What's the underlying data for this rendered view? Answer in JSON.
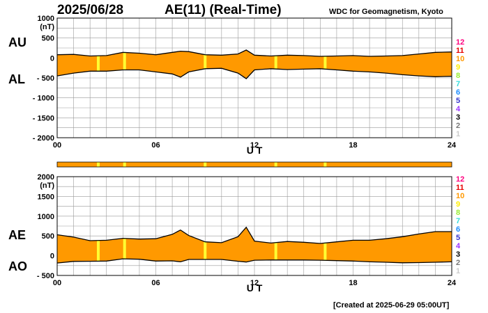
{
  "header": {
    "date": "2025/06/28",
    "title": "AE(11) (Real-Time)",
    "source": "WDC for Geomagnetism, Kyoto",
    "created": "[Created at 2025-06-29 05:00UT]"
  },
  "level_legend": {
    "levels": [
      "12",
      "11",
      "10",
      "9",
      "8",
      "7",
      "6",
      "5",
      "4",
      "3",
      "2",
      "1"
    ],
    "colors": [
      "#ff007f",
      "#e60000",
      "#ff9900",
      "#ffee00",
      "#99ee33",
      "#33dddd",
      "#1a8cff",
      "#3333cc",
      "#9933ff",
      "#000000",
      "#777777",
      "#cccccc"
    ]
  },
  "colors": {
    "fill": "#ff9900",
    "gap_marker": "#ffff33",
    "envelope": "#000000",
    "grid": "#999999"
  },
  "chart_data": [
    {
      "type": "area",
      "panel": "AU-AL",
      "series": [
        {
          "name": "AU",
          "x_hours": [
            0,
            1,
            2,
            3,
            4,
            5,
            6,
            7,
            7.5,
            8,
            9,
            10,
            11,
            11.5,
            12,
            13,
            14,
            15,
            16,
            17,
            18,
            19,
            20,
            21,
            22,
            23,
            24
          ],
          "values": [
            80,
            90,
            50,
            60,
            140,
            120,
            80,
            140,
            170,
            160,
            80,
            70,
            100,
            200,
            70,
            50,
            70,
            60,
            40,
            50,
            60,
            40,
            50,
            60,
            100,
            140,
            150
          ]
        },
        {
          "name": "AL",
          "x_hours": [
            0,
            1,
            2,
            3,
            4,
            5,
            6,
            7,
            7.5,
            8,
            9,
            10,
            11,
            11.5,
            12,
            13,
            14,
            15,
            16,
            17,
            18,
            19,
            20,
            21,
            22,
            23,
            24
          ],
          "values": [
            -450,
            -380,
            -330,
            -330,
            -300,
            -300,
            -350,
            -400,
            -480,
            -350,
            -270,
            -260,
            -380,
            -520,
            -300,
            -270,
            -290,
            -280,
            -270,
            -300,
            -330,
            -350,
            -380,
            -420,
            -450,
            -470,
            -460
          ]
        }
      ],
      "gap_markers_hours": [
        2.5,
        4.1,
        9.0,
        13.3,
        16.3
      ],
      "xlabel": "U T",
      "ylabel": "(nT)",
      "x_ticks": [
        "00",
        "06",
        "12",
        "18",
        "24"
      ],
      "xlim": [
        0,
        24
      ],
      "ylim": [
        -2000,
        1000
      ],
      "y_ticks": [
        1000,
        500,
        0,
        -500,
        -1000,
        -1500,
        -2000
      ],
      "y_tick_labels": [
        "1000",
        "500",
        "0",
        "- 500",
        "- 1000",
        "- 1500",
        "- 2000"
      ],
      "panel_labels": [
        "AU",
        "AL"
      ],
      "grid": true
    },
    {
      "type": "area",
      "panel": "AE-AO",
      "series": [
        {
          "name": "AE",
          "x_hours": [
            0,
            1,
            2,
            3,
            4,
            5,
            6,
            7,
            7.5,
            8,
            9,
            10,
            11,
            11.5,
            12,
            13,
            14,
            15,
            16,
            17,
            18,
            19,
            20,
            21,
            22,
            23,
            24
          ],
          "values": [
            530,
            470,
            380,
            390,
            440,
            420,
            430,
            540,
            650,
            510,
            350,
            330,
            480,
            720,
            370,
            320,
            360,
            340,
            310,
            350,
            390,
            390,
            430,
            480,
            550,
            610,
            610
          ]
        },
        {
          "name": "AO",
          "x_hours": [
            0,
            1,
            2,
            3,
            4,
            5,
            6,
            7,
            7.5,
            8,
            9,
            10,
            11,
            11.5,
            12,
            13,
            14,
            15,
            16,
            17,
            18,
            19,
            20,
            21,
            22,
            23,
            24
          ],
          "values": [
            -185,
            -145,
            -140,
            -135,
            -80,
            -90,
            -135,
            -130,
            -155,
            -95,
            -95,
            -95,
            -140,
            -160,
            -115,
            -110,
            -110,
            -110,
            -115,
            -125,
            -135,
            -155,
            -165,
            -180,
            -175,
            -165,
            -155
          ]
        }
      ],
      "gap_markers_hours": [
        2.5,
        4.1,
        9.0,
        13.3,
        16.3
      ],
      "xlabel": "U T",
      "ylabel": "(nT)",
      "x_ticks": [
        "00",
        "06",
        "12",
        "18",
        "24"
      ],
      "xlim": [
        0,
        24
      ],
      "ylim": [
        -500,
        2000
      ],
      "y_ticks": [
        2000,
        1500,
        1000,
        500,
        0,
        -500
      ],
      "y_tick_labels": [
        "2000",
        "1500",
        "1000",
        "500",
        "0",
        "- 500"
      ],
      "panel_labels": [
        "AE",
        "AO"
      ],
      "grid": true
    }
  ]
}
